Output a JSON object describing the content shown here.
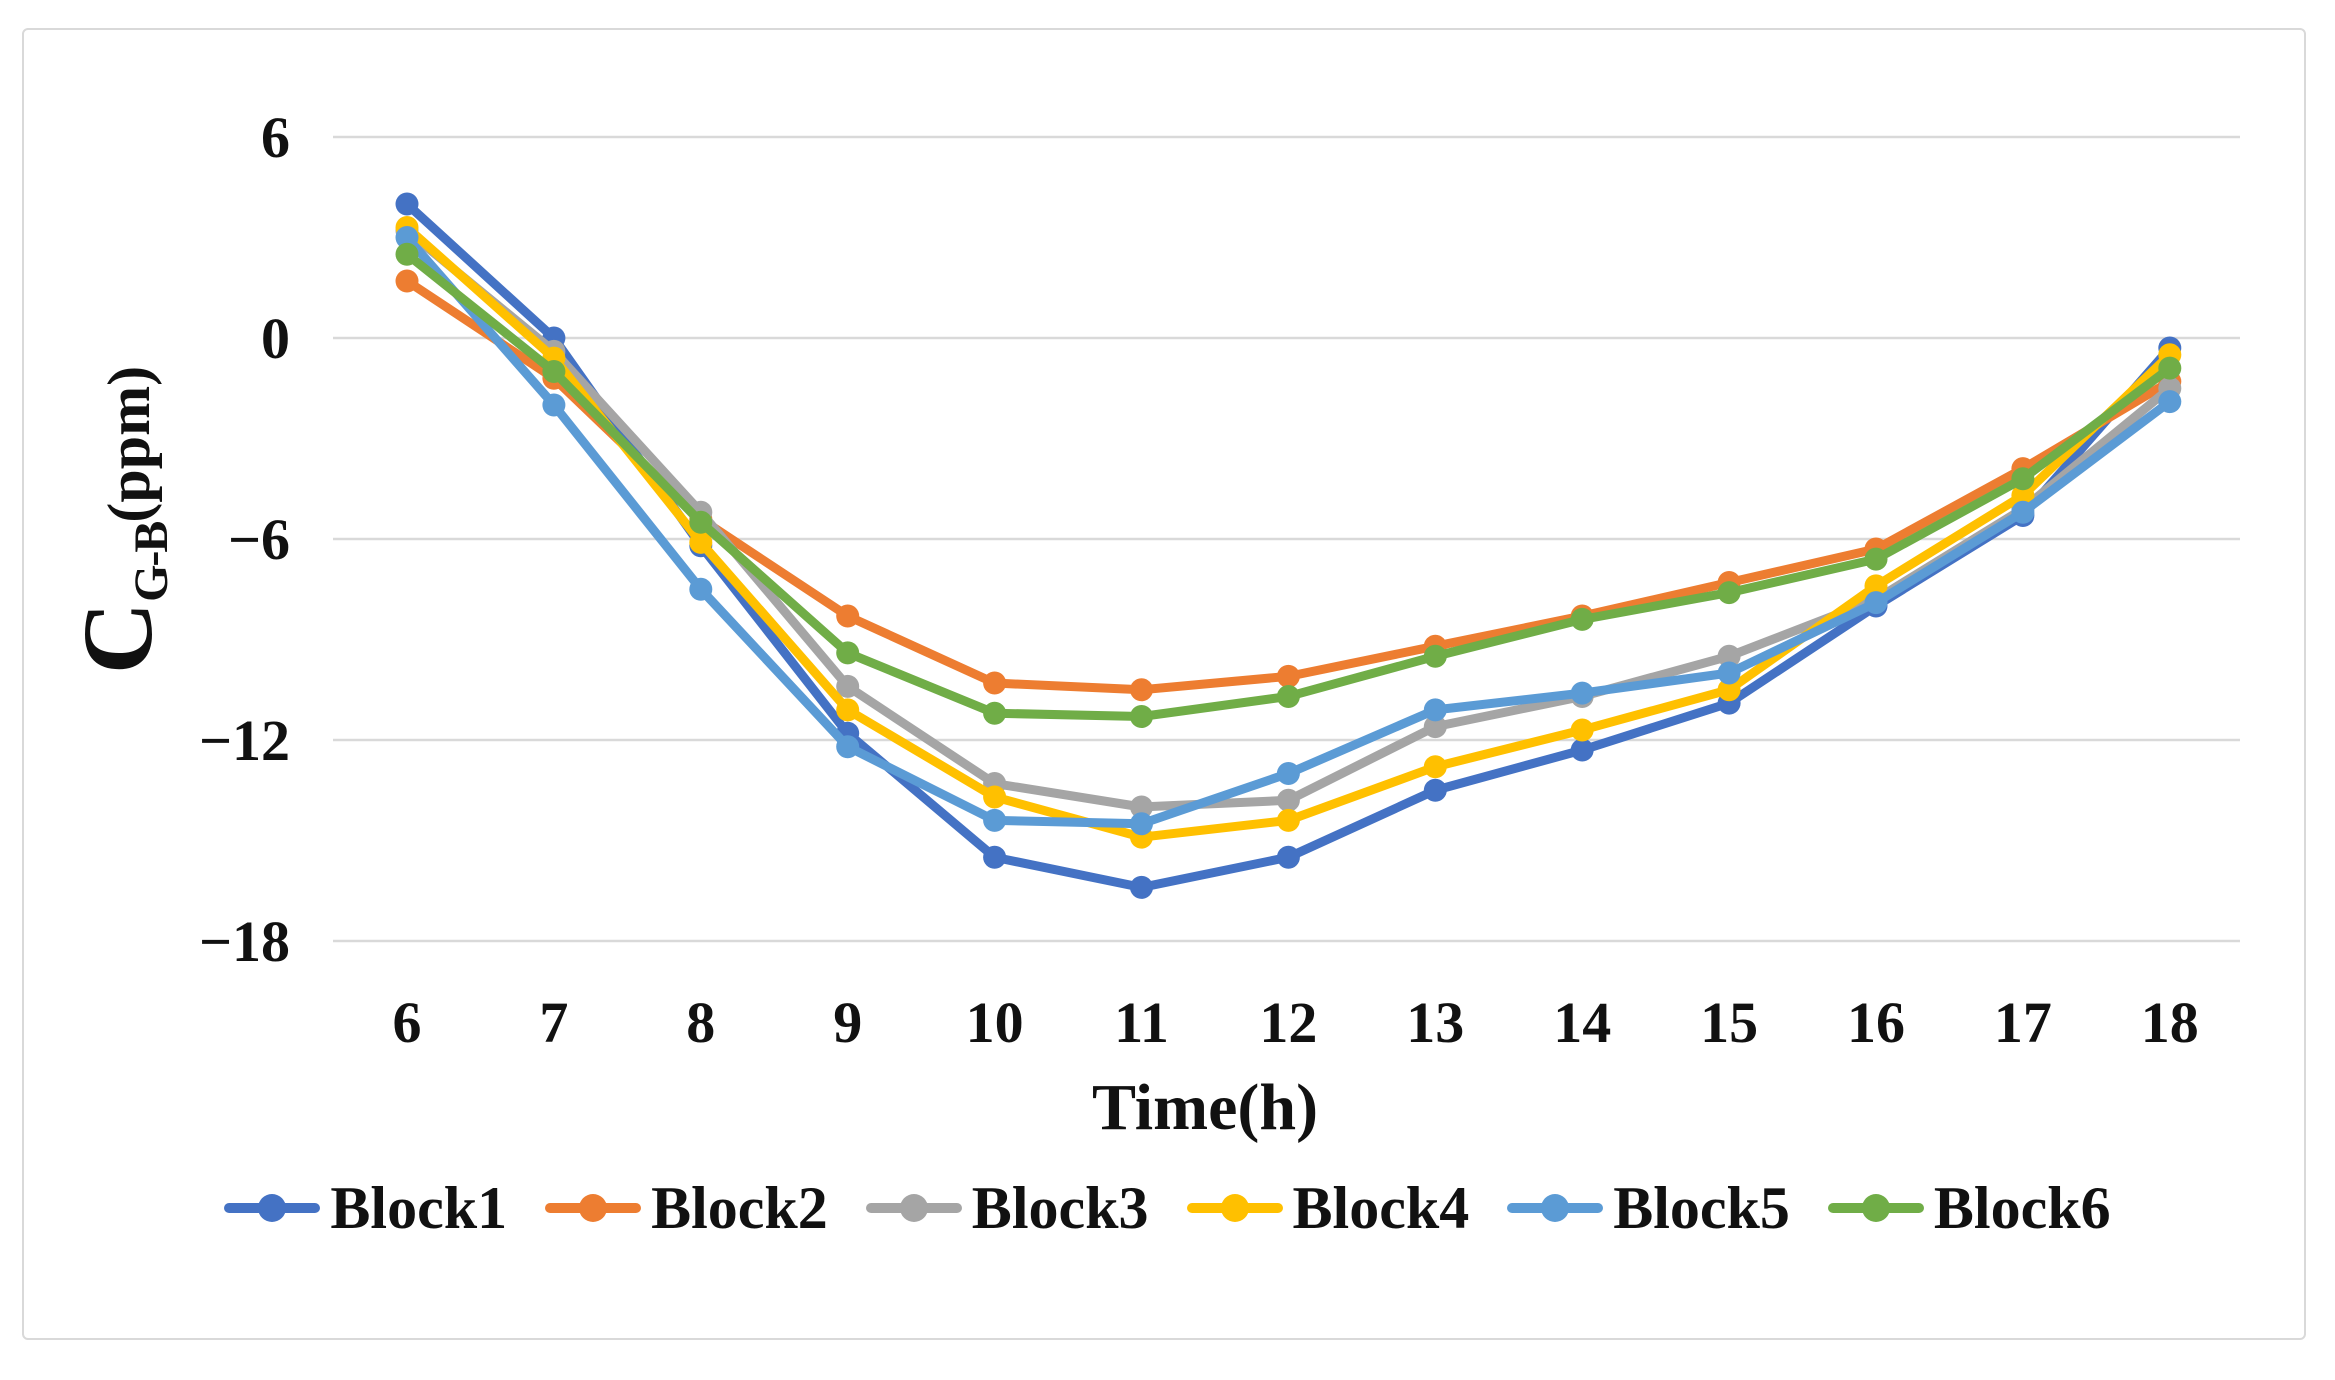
{
  "chart_data": {
    "type": "line",
    "title": "",
    "xlabel": "Time(h)",
    "ylabel": "C_G-B(ppm)",
    "ylabel_parts": {
      "main": "C",
      "subscript": "G-B",
      "unit": "(ppm)"
    },
    "x": [
      6,
      7,
      8,
      9,
      10,
      11,
      12,
      13,
      14,
      15,
      16,
      17,
      18
    ],
    "x_tick_labels": [
      "6",
      "7",
      "8",
      "9",
      "10",
      "11",
      "12",
      "13",
      "14",
      "15",
      "16",
      "17",
      "18"
    ],
    "y_ticks": [
      {
        "label": "6",
        "value": 6
      },
      {
        "label": "0",
        "value": 0
      },
      {
        "label": "−6",
        "value": -6
      },
      {
        "label": "−12",
        "value": -12
      },
      {
        "label": "−18",
        "value": -18
      }
    ],
    "ylim": [
      -18,
      6
    ],
    "grid": true,
    "legend_position": "bottom",
    "series": [
      {
        "name": "Block1",
        "color": "#4472C4",
        "values": [
          4.0,
          0.0,
          -6.2,
          -11.8,
          -15.5,
          -16.4,
          -15.5,
          -13.5,
          -12.3,
          -10.9,
          -8.0,
          -5.3,
          -0.3
        ]
      },
      {
        "name": "Block2",
        "color": "#ED7D31",
        "values": [
          1.7,
          -1.2,
          -5.4,
          -8.3,
          -10.3,
          -10.5,
          -10.1,
          -9.2,
          -8.3,
          -7.3,
          -6.3,
          -3.9,
          -1.3
        ]
      },
      {
        "name": "Block3",
        "color": "#A5A5A5",
        "values": [
          3.2,
          -0.4,
          -5.2,
          -10.4,
          -13.3,
          -14.0,
          -13.8,
          -11.6,
          -10.7,
          -9.5,
          -7.8,
          -5.1,
          -1.5
        ]
      },
      {
        "name": "Block4",
        "color": "#FFC000",
        "values": [
          3.3,
          -0.6,
          -6.1,
          -11.1,
          -13.7,
          -14.9,
          -14.4,
          -12.8,
          -11.7,
          -10.5,
          -7.4,
          -4.7,
          -0.5
        ]
      },
      {
        "name": "Block5",
        "color": "#5B9BD5",
        "values": [
          3.0,
          -2.0,
          -7.5,
          -12.2,
          -14.4,
          -14.5,
          -13.0,
          -11.1,
          -10.6,
          -10.0,
          -7.9,
          -5.2,
          -1.9
        ]
      },
      {
        "name": "Block6",
        "color": "#70AD47",
        "values": [
          2.5,
          -1.0,
          -5.5,
          -9.4,
          -11.2,
          -11.3,
          -10.7,
          -9.5,
          -8.4,
          -7.6,
          -6.6,
          -4.2,
          -0.9
        ]
      }
    ]
  },
  "styles": {
    "grid_color": "#d9d9d9",
    "frame_border_color": "#d9d9d9",
    "text_color": "#111111",
    "background": "#ffffff"
  }
}
